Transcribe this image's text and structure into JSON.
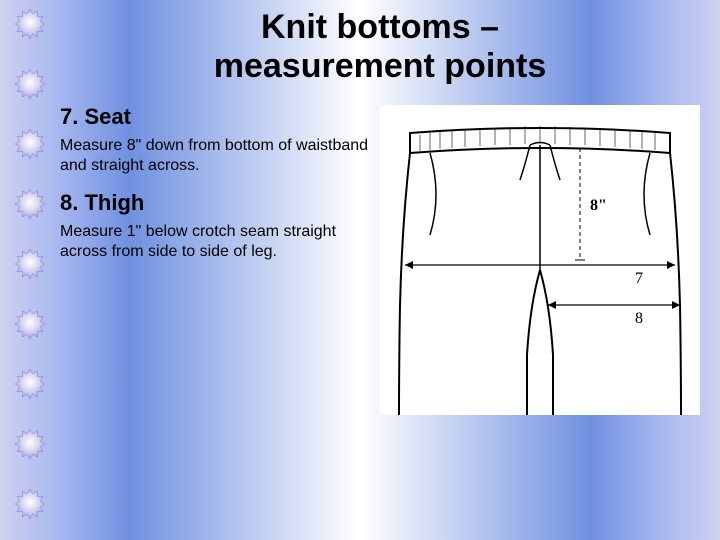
{
  "title_line1": "Knit bottoms –",
  "title_line2": "measurement points",
  "sections": [
    {
      "heading": "7. Seat",
      "body": "Measure 8\" down from bottom of waistband and straight across."
    },
    {
      "heading": "8. Thigh",
      "body": "Measure 1\" below crotch seam straight across from side to side of leg."
    }
  ],
  "diagram": {
    "label_8in": "8\"",
    "label_7": "7",
    "label_8": "8",
    "stroke": "#000000",
    "bg": "#ffffff"
  },
  "bullet_count": 9,
  "bullet_colors": {
    "light": "#d8d8f0",
    "mid": "#b0b0e8",
    "dark": "#8080d0"
  }
}
